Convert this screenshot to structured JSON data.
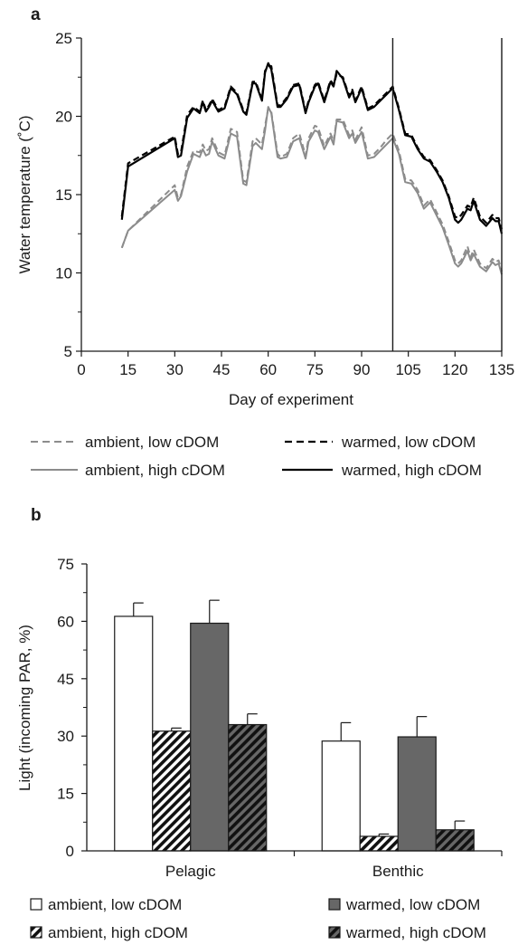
{
  "chart_data": [
    {
      "panel": "a",
      "type": "line",
      "xlabel": "Day of experiment",
      "ylabel": "Water temperature (˚C)",
      "xlim": [
        0,
        135
      ],
      "ylim": [
        5,
        25
      ],
      "xticks": [
        "0",
        "15",
        "30",
        "45",
        "60",
        "75",
        "90",
        "105",
        "120",
        "135"
      ],
      "yticks": [
        "5",
        "10",
        "15",
        "20",
        "25"
      ],
      "vlines": [
        100,
        135
      ],
      "grid": false,
      "legend_position": "bottom",
      "x": [
        13,
        15,
        30,
        31,
        32,
        34,
        36,
        38,
        39,
        40,
        41,
        42,
        44,
        46,
        48,
        50,
        52,
        53,
        55,
        56,
        58,
        59,
        60,
        61,
        63,
        64,
        66,
        68,
        70,
        72,
        73,
        75,
        76,
        78,
        80,
        81,
        82,
        84,
        86,
        87,
        88,
        90,
        92,
        94,
        96,
        98,
        100,
        102,
        104,
        106,
        108,
        110,
        112,
        114,
        116,
        118,
        120,
        121,
        122,
        124,
        125,
        126,
        128,
        130,
        132,
        133,
        134,
        135
      ],
      "series": [
        {
          "name": "ambient, low cDOM",
          "color": "#8c8c8c",
          "dash": true,
          "values": [
            11.6,
            12.7,
            15.6,
            14.8,
            15.0,
            16.8,
            17.8,
            17.7,
            18.2,
            17.8,
            17.9,
            18.6,
            17.7,
            17.5,
            19.2,
            19.0,
            15.9,
            15.8,
            18.4,
            18.6,
            18.2,
            19.4,
            20.5,
            20.3,
            17.6,
            17.4,
            17.6,
            18.6,
            18.9,
            17.5,
            18.6,
            19.4,
            19.3,
            18.1,
            18.9,
            18.4,
            19.8,
            19.8,
            18.8,
            19.1,
            18.5,
            19.3,
            17.5,
            17.6,
            18.0,
            18.5,
            18.9,
            17.8,
            16.0,
            15.9,
            15.3,
            14.3,
            14.7,
            13.9,
            13.1,
            12.0,
            10.8,
            10.6,
            10.8,
            11.7,
            11.0,
            11.5,
            10.6,
            10.3,
            10.9,
            10.7,
            10.8,
            10.1
          ]
        },
        {
          "name": "warmed, low cDOM",
          "color": "#000000",
          "dash": true,
          "values": [
            13.6,
            17.0,
            18.7,
            17.6,
            17.7,
            20.1,
            20.6,
            20.3,
            21.0,
            20.4,
            20.7,
            21.1,
            20.4,
            20.6,
            21.9,
            21.5,
            20.4,
            20.2,
            22.2,
            22.2,
            21.1,
            22.9,
            23.2,
            23.2,
            20.7,
            20.7,
            21.2,
            22.0,
            22.1,
            20.3,
            21.0,
            22.0,
            22.2,
            21.0,
            22.3,
            22.0,
            22.7,
            22.5,
            21.3,
            21.7,
            21.0,
            21.9,
            20.5,
            20.7,
            21.1,
            21.5,
            21.9,
            20.5,
            18.9,
            18.8,
            18.0,
            17.4,
            17.2,
            16.6,
            15.9,
            14.9,
            13.6,
            13.5,
            13.7,
            14.3,
            14.2,
            14.8,
            13.6,
            13.2,
            13.7,
            13.5,
            13.5,
            12.8
          ]
        },
        {
          "name": "ambient, high cDOM",
          "color": "#8c8c8c",
          "dash": false,
          "values": [
            11.6,
            12.7,
            15.3,
            14.6,
            14.9,
            16.5,
            17.6,
            17.4,
            17.9,
            17.5,
            17.6,
            18.4,
            17.5,
            17.3,
            18.9,
            18.7,
            15.7,
            15.6,
            18.1,
            18.3,
            17.9,
            19.1,
            20.6,
            20.2,
            17.4,
            17.3,
            17.4,
            18.4,
            18.6,
            17.3,
            18.4,
            19.1,
            19.0,
            17.9,
            18.7,
            18.2,
            19.7,
            19.6,
            18.6,
            18.9,
            18.3,
            19.0,
            17.3,
            17.4,
            17.8,
            18.2,
            18.6,
            17.6,
            15.8,
            15.7,
            15.1,
            14.1,
            14.5,
            13.7,
            12.9,
            11.8,
            10.6,
            10.4,
            10.6,
            11.4,
            10.8,
            11.2,
            10.4,
            10.1,
            10.7,
            10.5,
            10.6,
            9.9
          ]
        },
        {
          "name": "warmed, high cDOM",
          "color": "#000000",
          "dash": false,
          "values": [
            13.4,
            16.8,
            18.6,
            17.4,
            17.5,
            19.9,
            20.5,
            20.2,
            20.9,
            20.3,
            20.6,
            21.0,
            20.3,
            20.5,
            21.8,
            21.4,
            20.3,
            20.1,
            22.1,
            22.1,
            21.0,
            22.8,
            23.4,
            23.0,
            20.6,
            20.6,
            21.1,
            21.9,
            22.0,
            20.2,
            20.9,
            21.9,
            22.1,
            20.9,
            22.2,
            21.9,
            22.9,
            22.4,
            21.2,
            21.6,
            20.9,
            21.8,
            20.4,
            20.6,
            21.0,
            21.4,
            21.8,
            20.4,
            18.8,
            18.7,
            17.9,
            17.3,
            17.1,
            16.5,
            15.8,
            14.8,
            13.4,
            13.2,
            13.4,
            14.1,
            14.0,
            14.6,
            13.4,
            13.0,
            13.5,
            13.3,
            13.3,
            12.5
          ]
        }
      ]
    },
    {
      "panel": "b",
      "type": "bar",
      "xlabel": "",
      "ylabel": "Light (incoming PAR, %)",
      "ylim": [
        0,
        75
      ],
      "yticks": [
        "0",
        "15",
        "30",
        "45",
        "60",
        "75"
      ],
      "categories": [
        "Pelagic",
        "Benthic"
      ],
      "legend_position": "bottom",
      "series": [
        {
          "name": "ambient, low cDOM",
          "fill": "#ffffff",
          "hatch": false,
          "values": [
            61.3,
            28.7
          ],
          "errors": [
            3.5,
            4.8
          ]
        },
        {
          "name": "ambient, high cDOM",
          "fill": "#ffffff",
          "hatch": true,
          "values": [
            31.3,
            3.8
          ],
          "errors": [
            0.8,
            0.6
          ]
        },
        {
          "name": "warmed, low cDOM",
          "fill": "#676767",
          "hatch": false,
          "values": [
            59.5,
            29.8
          ],
          "errors": [
            6.0,
            5.3
          ]
        },
        {
          "name": "warmed, high cDOM",
          "fill": "#676767",
          "hatch": true,
          "values": [
            33.0,
            5.5
          ],
          "errors": [
            2.8,
            2.3
          ]
        }
      ]
    }
  ]
}
